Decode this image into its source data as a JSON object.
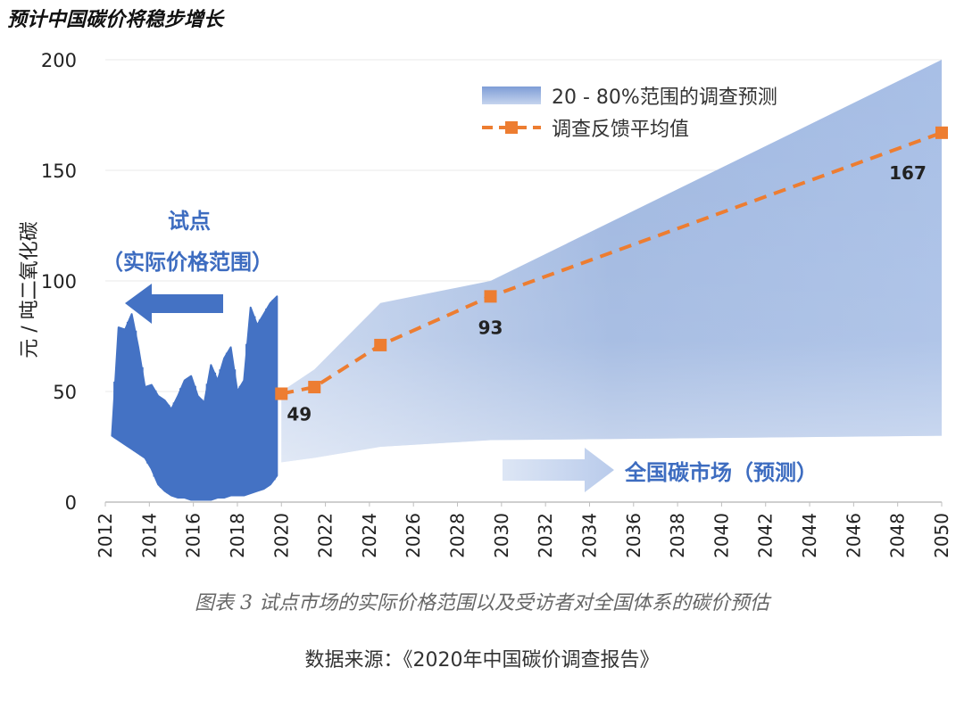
{
  "title": "预计中国碳价将稳步增长",
  "caption": "图表 3 试点市场的实际价格范围以及受访者对全国体系的碳价预估",
  "source": "数据来源：《2020年中国碳价调查报告》",
  "colors": {
    "band_light": "#dce6f5",
    "band_dark": "#8eaadb",
    "pilot": "#4472c4",
    "average_line": "#ed7d31",
    "annotation_text": "#3d6cc0",
    "label_text": "#222222",
    "gridline": "#e8e8e8"
  },
  "chart_data": {
    "type": "area",
    "ylabel": "元 / 吨二氧化碳",
    "xlabel": "",
    "xlim": [
      2012,
      2050
    ],
    "ylim": [
      0,
      200
    ],
    "x_ticks": [
      "2012",
      "2014",
      "2016",
      "2018",
      "2020",
      "2022",
      "2024",
      "2026",
      "2028",
      "2030",
      "2032",
      "2034",
      "2036",
      "2038",
      "2040",
      "2042",
      "2044",
      "2046",
      "2048",
      "2050"
    ],
    "y_ticks": [
      "0",
      "50",
      "100",
      "150",
      "200"
    ],
    "grid": true,
    "legend_position": "top-right",
    "legend": [
      {
        "label": "20 - 80%范围的调查预测",
        "kind": "band"
      },
      {
        "label": "调查反馈平均值",
        "kind": "dashed-line"
      }
    ],
    "series": [
      {
        "name": "20 - 80%范围的调查预测",
        "kind": "band",
        "x": [
          2020,
          2021.5,
          2024.5,
          2029.5,
          2050
        ],
        "lower": [
          18,
          20,
          25,
          28,
          30
        ],
        "upper": [
          50,
          60,
          90,
          100,
          200
        ]
      },
      {
        "name": "调查反馈平均值",
        "kind": "line",
        "x": [
          2020,
          2021.5,
          2024.5,
          2029.5,
          2050
        ],
        "values": [
          49,
          52,
          71,
          93,
          167
        ],
        "labels": [
          "49",
          "",
          "",
          "93",
          "167"
        ]
      },
      {
        "name": "试点（实际价格范围）",
        "kind": "range",
        "x": [
          2012.3,
          2012.6,
          2012.9,
          2013.2,
          2013.5,
          2013.8,
          2014.1,
          2014.4,
          2014.7,
          2015.0,
          2015.3,
          2015.6,
          2015.9,
          2016.2,
          2016.5,
          2016.8,
          2017.1,
          2017.4,
          2017.7,
          2018.0,
          2018.3,
          2018.6,
          2018.9,
          2019.2,
          2019.5,
          2019.8
        ],
        "lower": [
          30,
          28,
          26,
          24,
          22,
          20,
          15,
          8,
          5,
          3,
          2,
          2,
          1,
          1,
          1,
          1,
          2,
          2,
          3,
          3,
          3,
          4,
          5,
          6,
          8,
          12
        ],
        "upper": [
          30,
          79,
          78,
          85,
          70,
          52,
          53,
          48,
          46,
          42,
          48,
          55,
          57,
          48,
          45,
          62,
          55,
          65,
          70,
          50,
          55,
          88,
          80,
          85,
          90,
          93
        ]
      }
    ],
    "annotations": {
      "pilot_title": "试点",
      "pilot_subtitle": "（实际价格范围）",
      "national_label": "全国碳市场（预测）"
    }
  }
}
